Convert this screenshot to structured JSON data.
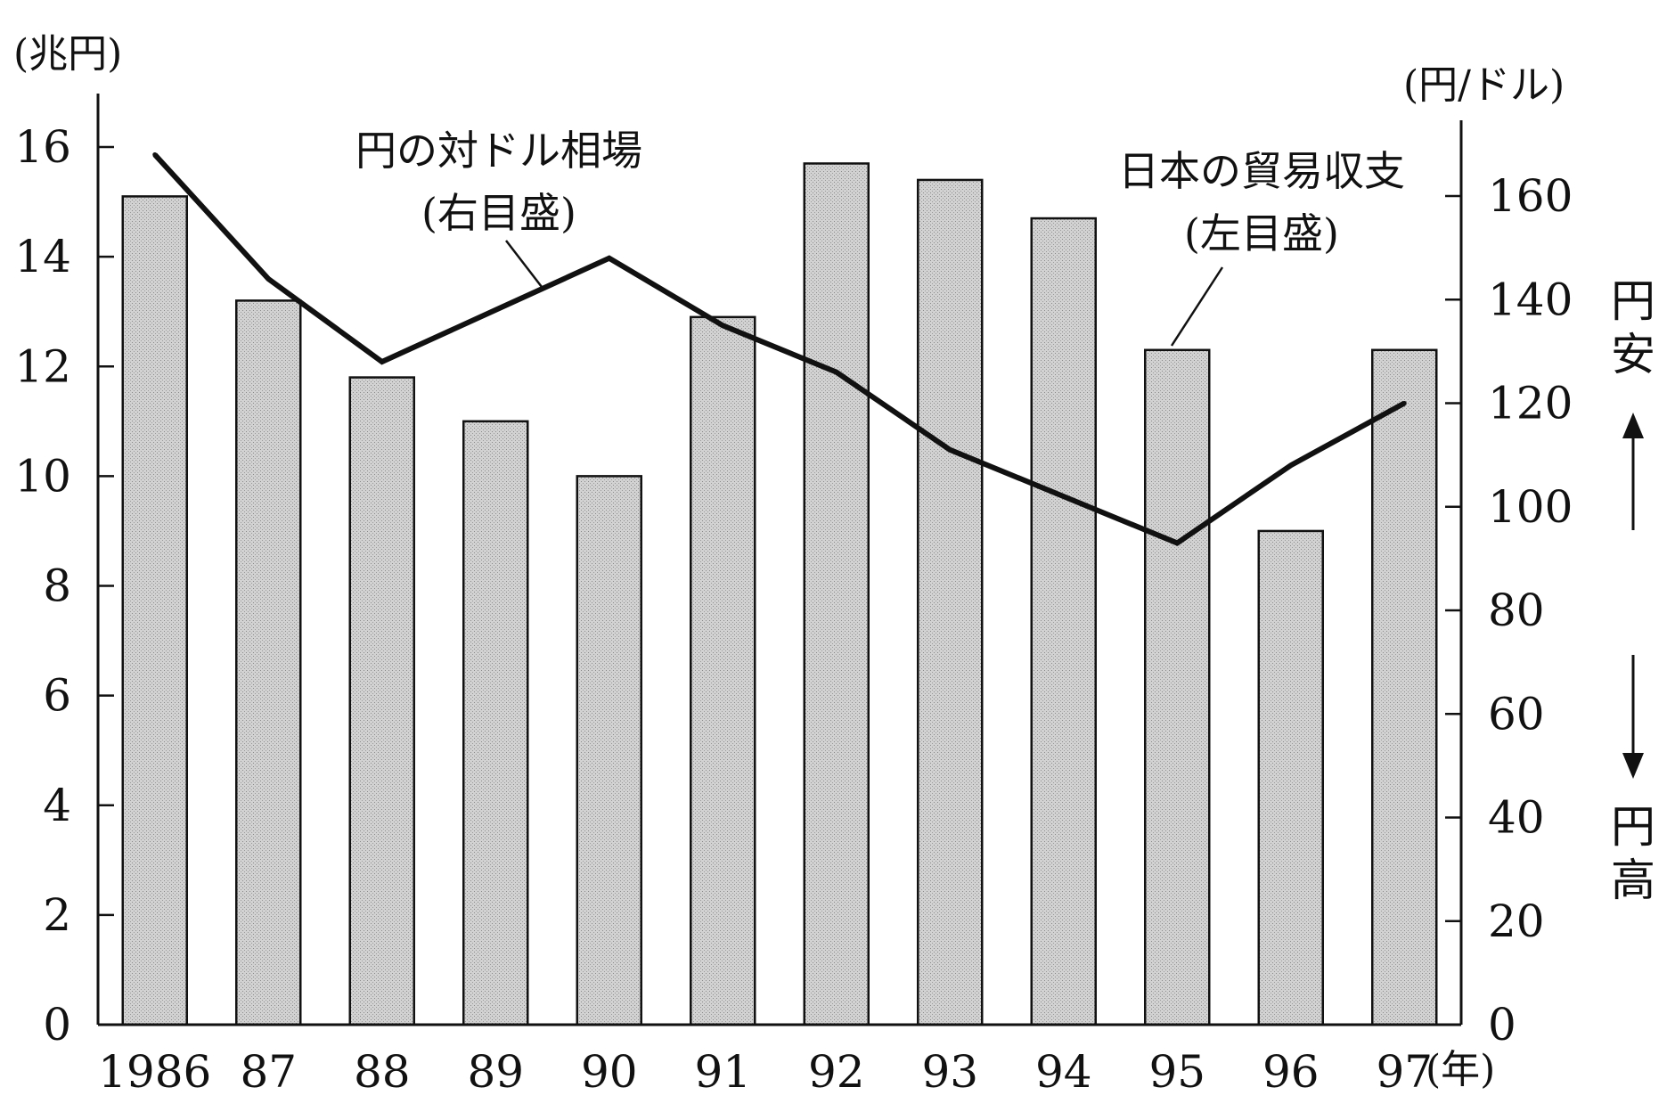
{
  "chart_data": {
    "type": "bar",
    "categories": [
      "1986",
      "87",
      "88",
      "89",
      "90",
      "91",
      "92",
      "93",
      "94",
      "95",
      "96",
      "97"
    ],
    "x_unit": "(年)",
    "series": [
      {
        "name": "日本の貿易収支",
        "axis": "left",
        "type": "bar",
        "values": [
          15.1,
          13.2,
          11.8,
          11.0,
          10.0,
          12.9,
          15.7,
          15.4,
          14.7,
          12.3,
          9.0,
          12.3
        ],
        "annotation_line1": "日本の貿易収支",
        "annotation_line2": "(左目盛)"
      },
      {
        "name": "円の対ドル相場",
        "axis": "right",
        "type": "line",
        "values": [
          168,
          144,
          128,
          138,
          148,
          135,
          126,
          111,
          102,
          93,
          108,
          120
        ],
        "annotation_line1": "円の対ドル相場",
        "annotation_line2": "(右目盛)"
      }
    ],
    "y_left": {
      "unit": "(兆円)",
      "ylim": [
        0,
        17
      ],
      "ticks": [
        "0",
        "2",
        "4",
        "6",
        "8",
        "10",
        "12",
        "14",
        "16"
      ]
    },
    "y_right": {
      "unit": "(円/ドル)",
      "ylim": [
        0,
        181
      ],
      "ticks": [
        "0",
        "20",
        "40",
        "60",
        "80",
        "100",
        "120",
        "140",
        "160"
      ]
    },
    "side_labels": {
      "up_line1": "円",
      "up_line2": "安",
      "down_line1": "円",
      "down_line2": "高"
    },
    "colors": {
      "bar_fill": "#c8c8c8",
      "bar_stroke": "#111111",
      "line": "#111111",
      "axis": "#111111"
    },
    "grid": false
  }
}
